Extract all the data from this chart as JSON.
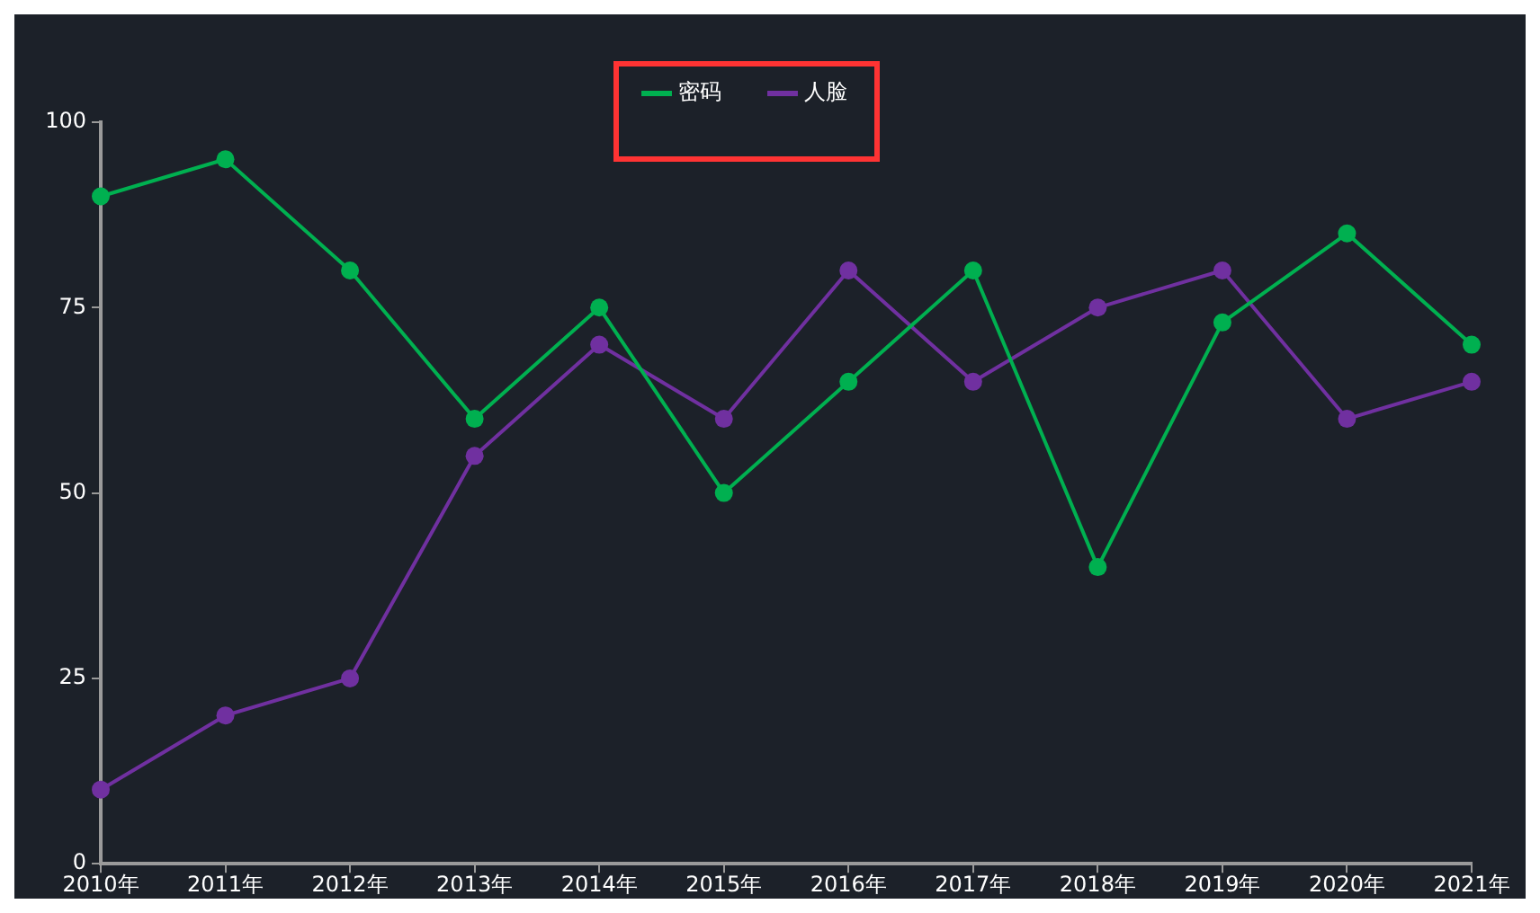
{
  "chart_data": {
    "type": "line",
    "categories": [
      "2010年",
      "2011年",
      "2012年",
      "2013年",
      "2014年",
      "2015年",
      "2016年",
      "2017年",
      "2018年",
      "2019年",
      "2020年",
      "2021年"
    ],
    "series": [
      {
        "name": "密码",
        "color": "#00b050",
        "values": [
          90,
          95,
          80,
          60,
          75,
          50,
          65,
          80,
          40,
          73,
          85,
          70
        ]
      },
      {
        "name": "人脸",
        "color": "#7030a0",
        "values": [
          10,
          20,
          25,
          55,
          70,
          60,
          80,
          65,
          75,
          80,
          60,
          65
        ]
      }
    ],
    "ylim": [
      0,
      100
    ],
    "yticks": [
      0,
      25,
      50,
      75,
      100
    ],
    "grid": false,
    "legend": "top",
    "marker": "circle",
    "line_style": "solid"
  }
}
